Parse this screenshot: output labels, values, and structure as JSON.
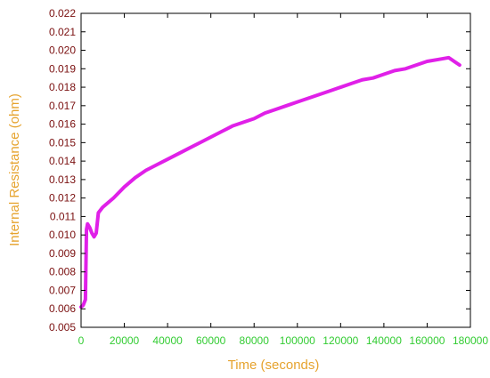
{
  "chart_data": {
    "type": "line",
    "xlabel": "Time (seconds)",
    "ylabel": "Internal Resistance (ohm)",
    "xlim": [
      0,
      180000
    ],
    "ylim": [
      0.005,
      0.022
    ],
    "x_ticks": [
      0,
      20000,
      40000,
      60000,
      80000,
      100000,
      120000,
      140000,
      160000,
      180000
    ],
    "y_ticks": [
      0.005,
      0.006,
      0.007,
      0.008,
      0.009,
      0.01,
      0.011,
      0.012,
      0.013,
      0.014,
      0.015,
      0.016,
      0.017,
      0.018,
      0.019,
      0.02,
      0.021,
      0.022
    ],
    "y_tick_labels": [
      "0.005",
      "0.006",
      "0.007",
      "0.008",
      "0.009",
      "0.010",
      "0.011",
      "0.012",
      "0.013",
      "0.014",
      "0.015",
      "0.016",
      "0.017",
      "0.018",
      "0.019",
      "0.020",
      "0.021",
      "0.022"
    ],
    "x_tick_labels": [
      "0",
      "20000",
      "40000",
      "60000",
      "80000",
      "100000",
      "120000",
      "140000",
      "160000",
      "180000"
    ],
    "grid": false,
    "series": [
      {
        "color": "#e020e8",
        "x": [
          0,
          1000,
          2000,
          2500,
          3000,
          4000,
          5000,
          6000,
          7000,
          8000,
          10000,
          15000,
          20000,
          25000,
          30000,
          35000,
          40000,
          45000,
          50000,
          55000,
          60000,
          65000,
          70000,
          75000,
          80000,
          85000,
          90000,
          95000,
          100000,
          105000,
          110000,
          115000,
          120000,
          125000,
          130000,
          135000,
          140000,
          145000,
          150000,
          155000,
          160000,
          165000,
          170000,
          175000
        ],
        "y": [
          0.0061,
          0.0062,
          0.0065,
          0.0103,
          0.0106,
          0.0104,
          0.0101,
          0.0099,
          0.0101,
          0.0112,
          0.0115,
          0.012,
          0.0126,
          0.0131,
          0.0135,
          0.0138,
          0.0141,
          0.0144,
          0.0147,
          0.015,
          0.0153,
          0.0156,
          0.0159,
          0.0161,
          0.0163,
          0.0166,
          0.0168,
          0.017,
          0.0172,
          0.0174,
          0.0176,
          0.0178,
          0.018,
          0.0182,
          0.0184,
          0.0185,
          0.0187,
          0.0189,
          0.019,
          0.0192,
          0.0194,
          0.0195,
          0.0196,
          0.0192
        ]
      }
    ]
  }
}
